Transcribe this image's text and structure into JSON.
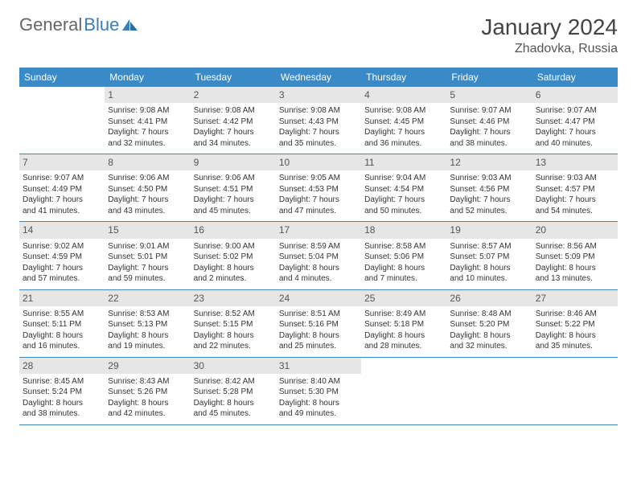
{
  "brand": {
    "part1": "General",
    "part2": "Blue"
  },
  "title": "January 2024",
  "location": "Zhadovka, Russia",
  "colors": {
    "header_bg": "#3a8ac7",
    "daynum_bg": "#e6e6e6",
    "text": "#333333",
    "brand_gray": "#666666",
    "brand_blue": "#3a7fb8"
  },
  "day_headers": [
    "Sunday",
    "Monday",
    "Tuesday",
    "Wednesday",
    "Thursday",
    "Friday",
    "Saturday"
  ],
  "weeks": [
    [
      {
        "n": "",
        "lines": [
          "",
          "",
          "",
          ""
        ]
      },
      {
        "n": "1",
        "lines": [
          "Sunrise: 9:08 AM",
          "Sunset: 4:41 PM",
          "Daylight: 7 hours",
          "and 32 minutes."
        ]
      },
      {
        "n": "2",
        "lines": [
          "Sunrise: 9:08 AM",
          "Sunset: 4:42 PM",
          "Daylight: 7 hours",
          "and 34 minutes."
        ]
      },
      {
        "n": "3",
        "lines": [
          "Sunrise: 9:08 AM",
          "Sunset: 4:43 PM",
          "Daylight: 7 hours",
          "and 35 minutes."
        ]
      },
      {
        "n": "4",
        "lines": [
          "Sunrise: 9:08 AM",
          "Sunset: 4:45 PM",
          "Daylight: 7 hours",
          "and 36 minutes."
        ]
      },
      {
        "n": "5",
        "lines": [
          "Sunrise: 9:07 AM",
          "Sunset: 4:46 PM",
          "Daylight: 7 hours",
          "and 38 minutes."
        ]
      },
      {
        "n": "6",
        "lines": [
          "Sunrise: 9:07 AM",
          "Sunset: 4:47 PM",
          "Daylight: 7 hours",
          "and 40 minutes."
        ]
      }
    ],
    [
      {
        "n": "7",
        "lines": [
          "Sunrise: 9:07 AM",
          "Sunset: 4:49 PM",
          "Daylight: 7 hours",
          "and 41 minutes."
        ]
      },
      {
        "n": "8",
        "lines": [
          "Sunrise: 9:06 AM",
          "Sunset: 4:50 PM",
          "Daylight: 7 hours",
          "and 43 minutes."
        ]
      },
      {
        "n": "9",
        "lines": [
          "Sunrise: 9:06 AM",
          "Sunset: 4:51 PM",
          "Daylight: 7 hours",
          "and 45 minutes."
        ]
      },
      {
        "n": "10",
        "lines": [
          "Sunrise: 9:05 AM",
          "Sunset: 4:53 PM",
          "Daylight: 7 hours",
          "and 47 minutes."
        ]
      },
      {
        "n": "11",
        "lines": [
          "Sunrise: 9:04 AM",
          "Sunset: 4:54 PM",
          "Daylight: 7 hours",
          "and 50 minutes."
        ]
      },
      {
        "n": "12",
        "lines": [
          "Sunrise: 9:03 AM",
          "Sunset: 4:56 PM",
          "Daylight: 7 hours",
          "and 52 minutes."
        ]
      },
      {
        "n": "13",
        "lines": [
          "Sunrise: 9:03 AM",
          "Sunset: 4:57 PM",
          "Daylight: 7 hours",
          "and 54 minutes."
        ]
      }
    ],
    [
      {
        "n": "14",
        "lines": [
          "Sunrise: 9:02 AM",
          "Sunset: 4:59 PM",
          "Daylight: 7 hours",
          "and 57 minutes."
        ]
      },
      {
        "n": "15",
        "lines": [
          "Sunrise: 9:01 AM",
          "Sunset: 5:01 PM",
          "Daylight: 7 hours",
          "and 59 minutes."
        ]
      },
      {
        "n": "16",
        "lines": [
          "Sunrise: 9:00 AM",
          "Sunset: 5:02 PM",
          "Daylight: 8 hours",
          "and 2 minutes."
        ]
      },
      {
        "n": "17",
        "lines": [
          "Sunrise: 8:59 AM",
          "Sunset: 5:04 PM",
          "Daylight: 8 hours",
          "and 4 minutes."
        ]
      },
      {
        "n": "18",
        "lines": [
          "Sunrise: 8:58 AM",
          "Sunset: 5:06 PM",
          "Daylight: 8 hours",
          "and 7 minutes."
        ]
      },
      {
        "n": "19",
        "lines": [
          "Sunrise: 8:57 AM",
          "Sunset: 5:07 PM",
          "Daylight: 8 hours",
          "and 10 minutes."
        ]
      },
      {
        "n": "20",
        "lines": [
          "Sunrise: 8:56 AM",
          "Sunset: 5:09 PM",
          "Daylight: 8 hours",
          "and 13 minutes."
        ]
      }
    ],
    [
      {
        "n": "21",
        "lines": [
          "Sunrise: 8:55 AM",
          "Sunset: 5:11 PM",
          "Daylight: 8 hours",
          "and 16 minutes."
        ]
      },
      {
        "n": "22",
        "lines": [
          "Sunrise: 8:53 AM",
          "Sunset: 5:13 PM",
          "Daylight: 8 hours",
          "and 19 minutes."
        ]
      },
      {
        "n": "23",
        "lines": [
          "Sunrise: 8:52 AM",
          "Sunset: 5:15 PM",
          "Daylight: 8 hours",
          "and 22 minutes."
        ]
      },
      {
        "n": "24",
        "lines": [
          "Sunrise: 8:51 AM",
          "Sunset: 5:16 PM",
          "Daylight: 8 hours",
          "and 25 minutes."
        ]
      },
      {
        "n": "25",
        "lines": [
          "Sunrise: 8:49 AM",
          "Sunset: 5:18 PM",
          "Daylight: 8 hours",
          "and 28 minutes."
        ]
      },
      {
        "n": "26",
        "lines": [
          "Sunrise: 8:48 AM",
          "Sunset: 5:20 PM",
          "Daylight: 8 hours",
          "and 32 minutes."
        ]
      },
      {
        "n": "27",
        "lines": [
          "Sunrise: 8:46 AM",
          "Sunset: 5:22 PM",
          "Daylight: 8 hours",
          "and 35 minutes."
        ]
      }
    ],
    [
      {
        "n": "28",
        "lines": [
          "Sunrise: 8:45 AM",
          "Sunset: 5:24 PM",
          "Daylight: 8 hours",
          "and 38 minutes."
        ]
      },
      {
        "n": "29",
        "lines": [
          "Sunrise: 8:43 AM",
          "Sunset: 5:26 PM",
          "Daylight: 8 hours",
          "and 42 minutes."
        ]
      },
      {
        "n": "30",
        "lines": [
          "Sunrise: 8:42 AM",
          "Sunset: 5:28 PM",
          "Daylight: 8 hours",
          "and 45 minutes."
        ]
      },
      {
        "n": "31",
        "lines": [
          "Sunrise: 8:40 AM",
          "Sunset: 5:30 PM",
          "Daylight: 8 hours",
          "and 49 minutes."
        ]
      },
      {
        "n": "",
        "lines": [
          "",
          "",
          "",
          ""
        ]
      },
      {
        "n": "",
        "lines": [
          "",
          "",
          "",
          ""
        ]
      },
      {
        "n": "",
        "lines": [
          "",
          "",
          "",
          ""
        ]
      }
    ]
  ]
}
